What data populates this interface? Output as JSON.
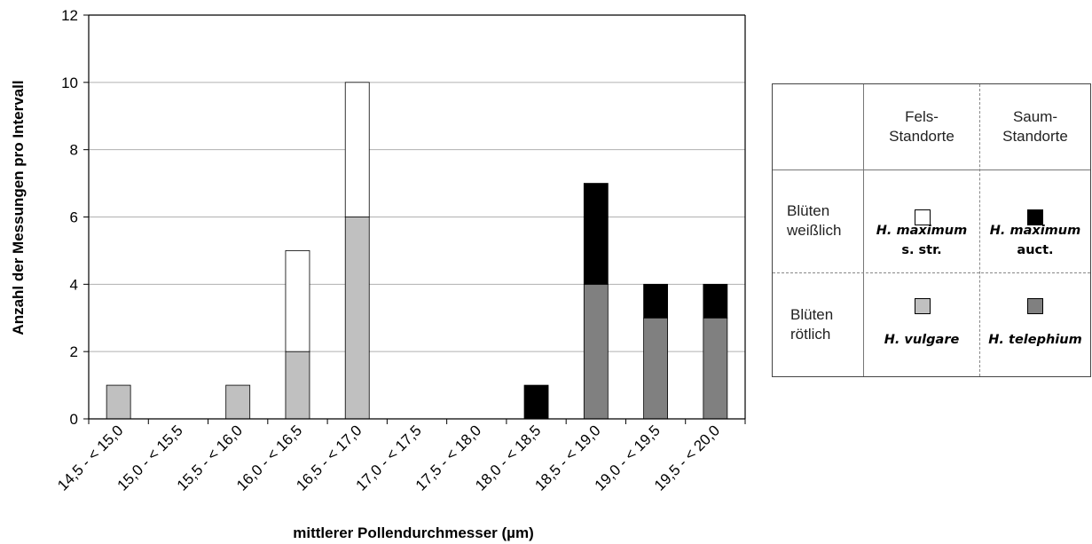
{
  "chart_data": {
    "type": "bar",
    "stacked": true,
    "xlabel": "mittlerer Pollendurchmesser (µm)",
    "ylabel": "Anzahl der Messungen pro Intervall",
    "ylim": [
      0,
      12
    ],
    "yticks": [
      0,
      2,
      4,
      6,
      8,
      10,
      12
    ],
    "grid": true,
    "categories": [
      "14,5 - < 15,0",
      "15,0 - < 15,5",
      "15,5 - < 16,0",
      "16,0 - < 16,5",
      "16,5 - < 17,0",
      "17,0 - < 17,5",
      "17,5 - < 18,0",
      "18,0 - < 18,5",
      "18,5 - < 19,0",
      "19,0 - < 19,5",
      "19,5 - < 20,0"
    ],
    "series": [
      {
        "key": "vulgare",
        "color": "#c0c0c0",
        "values": [
          1,
          0,
          1,
          2,
          6,
          0,
          0,
          0,
          0,
          0,
          0
        ]
      },
      {
        "key": "maximum_str",
        "color": "#ffffff",
        "values": [
          0,
          0,
          0,
          3,
          4,
          0,
          0,
          0,
          0,
          0,
          0
        ]
      },
      {
        "key": "telephium",
        "color": "#808080",
        "values": [
          0,
          0,
          0,
          0,
          0,
          0,
          0,
          0,
          4,
          3,
          3
        ]
      },
      {
        "key": "maximum_auct",
        "color": "#000000",
        "values": [
          0,
          0,
          0,
          0,
          0,
          0,
          0,
          1,
          3,
          1,
          1
        ]
      }
    ]
  },
  "legend": {
    "col1": "Fels-\nStandorte",
    "col2": "Saum-\nStandorte",
    "row1": "Blüten\nweißlich",
    "row2": "Blüten\nrötlich",
    "cells": [
      {
        "genus": "H.",
        "epithet": "maximum",
        "qualifier": "s. str.",
        "color": "#ffffff"
      },
      {
        "genus": "H.",
        "epithet": "maximum",
        "qualifier": "auct.",
        "color": "#000000"
      },
      {
        "genus": "H.",
        "epithet": "vulgare",
        "qualifier": "",
        "color": "#c0c0c0"
      },
      {
        "genus": "H.",
        "epithet": "telephium",
        "qualifier": "",
        "color": "#808080"
      }
    ]
  }
}
